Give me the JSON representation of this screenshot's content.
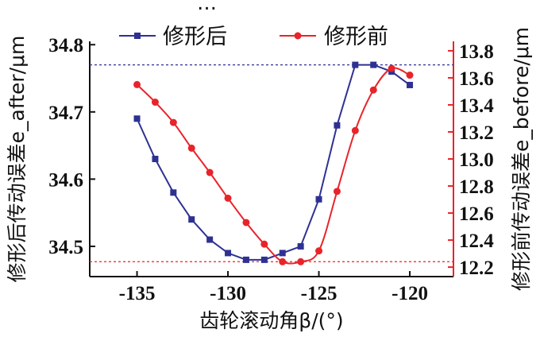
{
  "chart_data": {
    "type": "line",
    "top_text": "…",
    "xlabel": "齿轮滚动角β/(°)",
    "x_ticks": [
      -135,
      -130,
      -125,
      -120
    ],
    "xlim": [
      -137.6,
      -117.6
    ],
    "y_left": {
      "label": "修形后传动误差e_after/μm",
      "ticks": [
        "34.5",
        "34.6",
        "34.7",
        "34.8"
      ],
      "lim": [
        34.455,
        34.805
      ]
    },
    "y_right": {
      "label": "修形前传动误差e_before/μm",
      "ticks": [
        "12.2",
        "12.4",
        "12.6",
        "12.8",
        "13.0",
        "13.2",
        "13.4",
        "13.6",
        "13.8"
      ],
      "lim": [
        12.13,
        13.87
      ],
      "color": "#e8242a"
    },
    "series": [
      {
        "name": "修形后",
        "axis": "left",
        "color": "#2e3192",
        "marker": "square",
        "x": [
          -135,
          -134,
          -133,
          -132,
          -131,
          -130,
          -129,
          -128,
          -127,
          -126,
          -125,
          -124,
          -123,
          -122,
          -121,
          -120
        ],
        "values": [
          34.69,
          34.63,
          34.58,
          34.54,
          34.51,
          34.49,
          34.48,
          34.48,
          34.49,
          34.5,
          34.57,
          34.68,
          34.77,
          34.77,
          34.76,
          34.74
        ],
        "ref_line": 34.77
      },
      {
        "name": "修形前",
        "axis": "right",
        "color": "#e8242a",
        "marker": "circle",
        "x": [
          -135,
          -134,
          -133,
          -132,
          -131,
          -130,
          -129,
          -128,
          -127,
          -126,
          -125,
          -124,
          -123,
          -122,
          -121,
          -120
        ],
        "values": [
          13.55,
          13.42,
          13.27,
          13.08,
          12.9,
          12.71,
          12.53,
          12.37,
          12.24,
          12.24,
          12.32,
          12.76,
          13.21,
          13.51,
          13.67,
          13.62
        ],
        "ref_line": 12.24
      }
    ]
  }
}
